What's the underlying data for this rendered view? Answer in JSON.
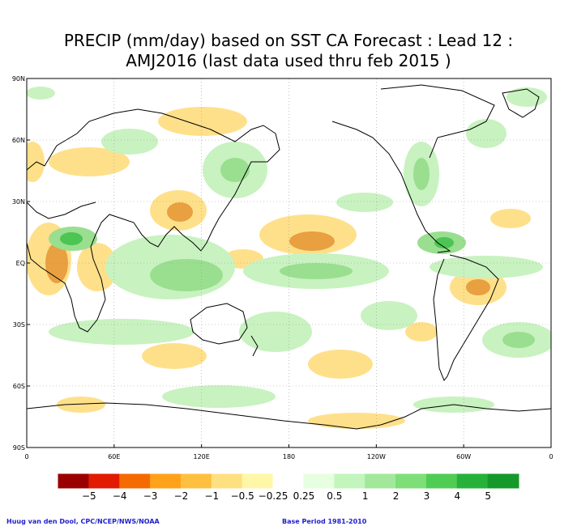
{
  "title_line1": "PRECIP (mm/day) based on SST CA Forecast : Lead 12 :",
  "title_line2": "AMJ2016 (last data used thru feb 2015 )",
  "lat_labels": [
    "90N",
    "60N",
    "30N",
    "EQ",
    "30S",
    "60S",
    "90S"
  ],
  "lon_labels": [
    "0",
    "60E",
    "120E",
    "180",
    "120W",
    "60W",
    "0"
  ],
  "colorbar": {
    "labels": [
      "−5",
      "−4",
      "−3",
      "−2",
      "−1",
      "−0.5",
      "−0.25",
      "0.25",
      "0.5",
      "1",
      "2",
      "3",
      "4",
      "5"
    ],
    "colors": [
      "#9a0000",
      "#e11a00",
      "#f56a00",
      "#ffa21a",
      "#ffc040",
      "#ffe080",
      "#fff6a8",
      "#ffffff",
      "#e6ffe0",
      "#c4f5bd",
      "#a2e89a",
      "#7ede78",
      "#50cc55",
      "#26b23a",
      "#15992a"
    ]
  },
  "credit_left": "Huug van den Dool, CPC/NCEP/NWS/NOAA",
  "credit_right": "Base Period 1981-2010",
  "colors": {
    "dry_dark": "#e8a040",
    "dry_light": "#ffe08a",
    "wet_light": "#c8f2c0",
    "wet_mid": "#9ade90",
    "wet_dark": "#4cc552",
    "coast": "#000000",
    "grid": "#999999"
  }
}
